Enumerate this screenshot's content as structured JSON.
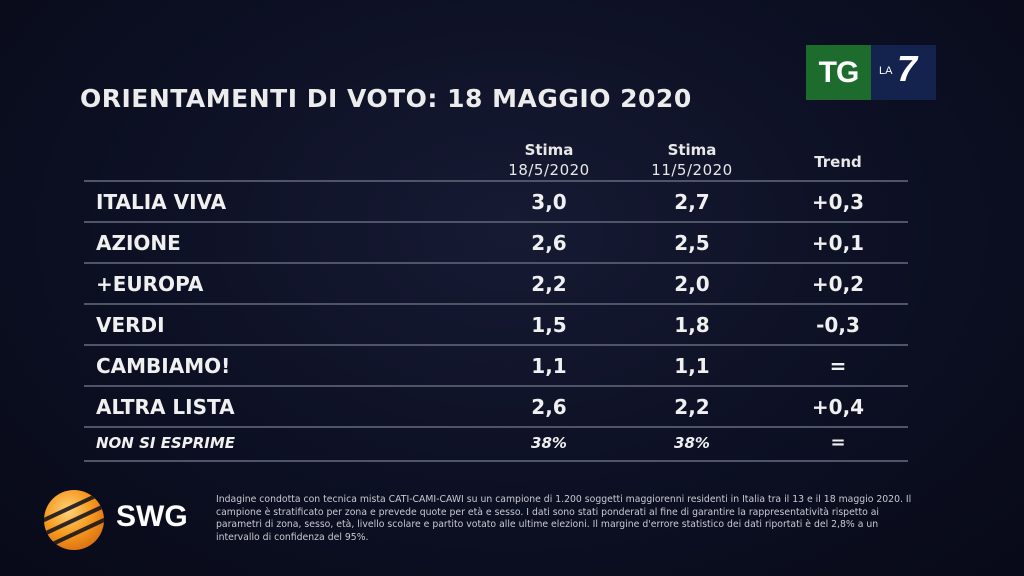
{
  "title": "ORIENTAMENTI DI VOTO: 18 MAGGIO 2020",
  "broadcaster_logo": {
    "left": "TG",
    "small": "LA",
    "right": "7"
  },
  "headers": {
    "current_l1": "Stima",
    "current_l2": "18/5/2020",
    "previous_l1": "Stima",
    "previous_l2": "11/5/2020",
    "trend": "Trend"
  },
  "chart_data": {
    "type": "table",
    "title": "ORIENTAMENTI DI VOTO: 18 MAGGIO 2020",
    "columns": [
      "Stima 18/5/2020",
      "Stima 11/5/2020",
      "Trend"
    ],
    "rows": [
      {
        "label": "ITALIA VIVA",
        "current": "3,0",
        "previous": "2,7",
        "trend": "+0,3"
      },
      {
        "label": "AZIONE",
        "current": "2,6",
        "previous": "2,5",
        "trend": "+0,1"
      },
      {
        "label": "+EUROPA",
        "current": "2,2",
        "previous": "2,0",
        "trend": "+0,2"
      },
      {
        "label": "VERDI",
        "current": "1,5",
        "previous": "1,8",
        "trend": "-0,3"
      },
      {
        "label": "CAMBIAMO!",
        "current": "1,1",
        "previous": "1,1",
        "trend": "="
      },
      {
        "label": "ALTRA LISTA",
        "current": "2,6",
        "previous": "2,2",
        "trend": "+0,4"
      },
      {
        "label": "NON SI ESPRIME",
        "current": "38%",
        "previous": "38%",
        "trend": "="
      }
    ]
  },
  "source_logo": "SWG",
  "footnote": "Indagine condotta con tecnica mista CATI-CAMI-CAWI su un campione di 1.200 soggetti maggiorenni residenti in Italia tra il 13 e il 18 maggio 2020. Il campione è stratificato per zona e prevede quote per età e sesso. I dati sono stati ponderati al fine di garantire la rappresentatività rispetto ai parametri di zona, sesso, età, livello scolare e partito votato alle ultime elezioni. Il margine d'errore statistico dei dati riportati è del 2,8% a un intervallo di confidenza del 95%."
}
